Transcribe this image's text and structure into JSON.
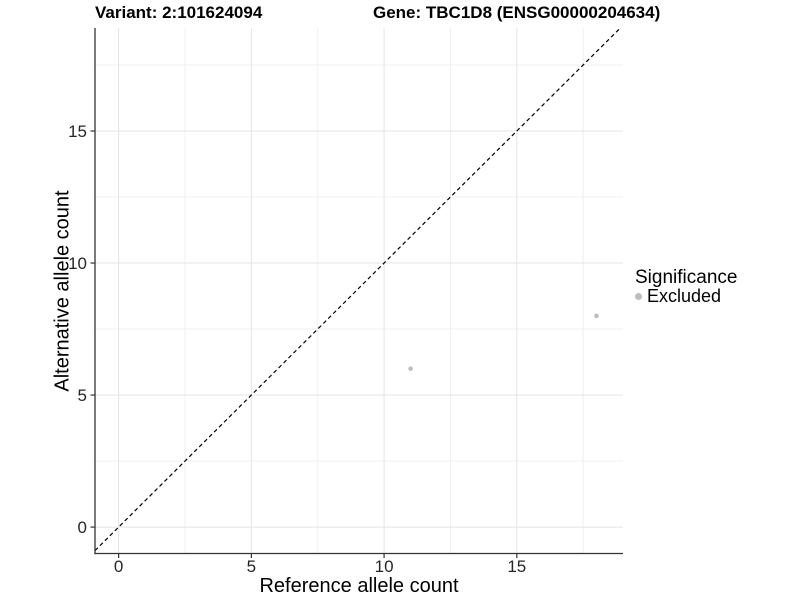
{
  "chart_data": {
    "type": "scatter",
    "title_left": "Variant: 2:101624094",
    "title_right": "Gene: TBC1D8 (ENSG00000204634)",
    "xlabel": "Reference allele count",
    "ylabel": "Alternative allele count",
    "xlim": [
      -0.89,
      19.0
    ],
    "ylim": [
      -1.0,
      18.9
    ],
    "x_ticks": [
      0,
      5,
      10,
      15
    ],
    "y_ticks": [
      0,
      5,
      10,
      15
    ],
    "x_minor_ticks": [
      2.5,
      7.5,
      12.5,
      17.5
    ],
    "y_minor_ticks": [
      2.5,
      7.5,
      12.5,
      17.5
    ],
    "grid": true,
    "series": [
      {
        "name": "Excluded",
        "color": "#bebebe",
        "point_radius": 2.3,
        "points": [
          {
            "x": 11,
            "y": 6
          },
          {
            "x": 18,
            "y": 8
          }
        ]
      }
    ],
    "reference_line": {
      "type": "identity",
      "equation": "y = x",
      "style": "dashed",
      "color": "#000000"
    },
    "legend": {
      "title": "Significance",
      "position": "right",
      "items": [
        {
          "label": "Excluded",
          "color": "#bebebe"
        }
      ]
    },
    "colors": {
      "background": "#ffffff",
      "grid_major": "#e4e4e4",
      "grid_minor": "#f0f0f0",
      "axis_line": "#333333",
      "tick_mark": "#333333",
      "tick_label": "#262626",
      "text": "#000000"
    }
  }
}
